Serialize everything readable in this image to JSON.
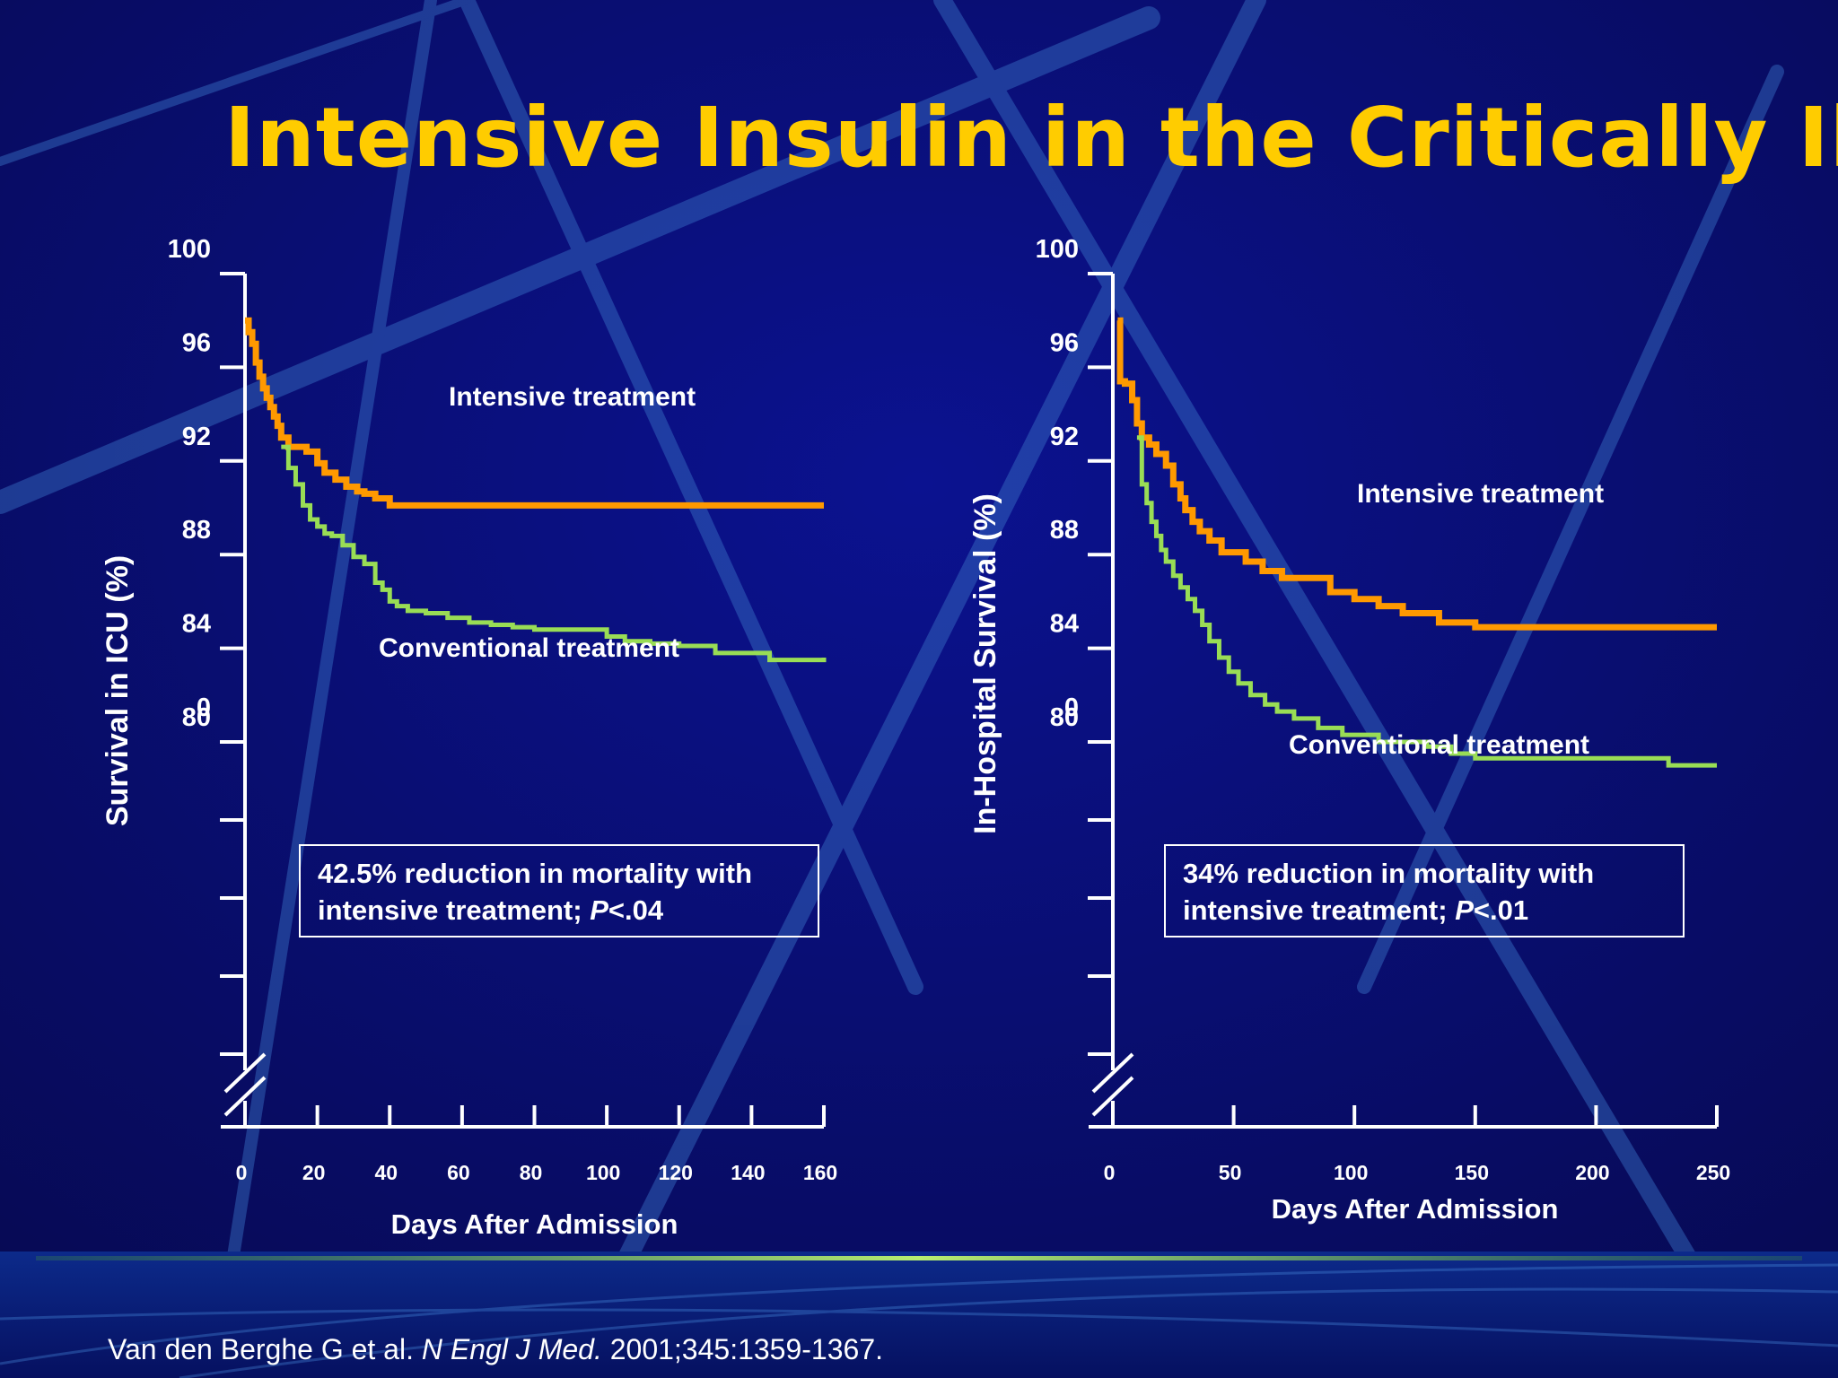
{
  "slide": {
    "title": "Intensive Insulin in the Critically Ill",
    "citation": {
      "authors": "Van den Berghe G et al.",
      "journal": "N Engl J Med.",
      "details": "2001;345:1359-1367."
    }
  },
  "colors": {
    "background": "#0a0f6e",
    "title": "#ffcc00",
    "intensive": "#ff9900",
    "conventional": "#99dd55",
    "axis": "#ffffff"
  },
  "chart_data": [
    {
      "type": "line",
      "ylabel": "Survival in ICU (%)",
      "xlabel": "Days After Admission",
      "xlim": [
        0,
        160
      ],
      "ylim": [
        80,
        100
      ],
      "x_ticks": [
        0,
        20,
        40,
        60,
        80,
        100,
        120,
        140,
        160
      ],
      "y_ticks": [
        100,
        96,
        92,
        88,
        84,
        80
      ],
      "y_axis_break": true,
      "y_zero_label": "0",
      "annotation": {
        "line1": "42.5% reduction in mortality with",
        "line2_prefix": "intensive treatment; ",
        "line2_p": "P",
        "line2_suffix": "<.04"
      },
      "series": [
        {
          "name": "Intensive treatment",
          "color": "#ff9900",
          "x": [
            0,
            1,
            2,
            3,
            4,
            5,
            6,
            7,
            8,
            9,
            10,
            12,
            14,
            17,
            20,
            22,
            25,
            28,
            31,
            33,
            36,
            40,
            45,
            60,
            80,
            100,
            120,
            140,
            160
          ],
          "y": [
            98,
            97.5,
            97,
            96.2,
            95.6,
            95.1,
            94.7,
            94.3,
            93.9,
            93.5,
            93,
            92.6,
            92.6,
            92.4,
            91.9,
            91.5,
            91.2,
            90.9,
            90.7,
            90.6,
            90.4,
            90.1,
            90.1,
            90.1,
            90.1,
            90.1,
            90.1,
            90.1,
            90.1
          ]
        },
        {
          "name": "Conventional treatment",
          "color": "#99dd55",
          "x": [
            10,
            12,
            14,
            16,
            18,
            20,
            22,
            24,
            27,
            30,
            33,
            36,
            38,
            40,
            42,
            45,
            50,
            56,
            62,
            68,
            74,
            80,
            90,
            100,
            105,
            112,
            120,
            130,
            145,
            160
          ],
          "y": [
            92.6,
            91.7,
            91,
            90.1,
            89.5,
            89.2,
            88.9,
            88.8,
            88.4,
            87.9,
            87.6,
            86.8,
            86.5,
            86,
            85.8,
            85.6,
            85.5,
            85.3,
            85.1,
            85,
            84.9,
            84.8,
            84.8,
            84.5,
            84.3,
            84.2,
            84.1,
            83.8,
            83.5,
            83.6
          ]
        }
      ]
    },
    {
      "type": "line",
      "ylabel": "In-Hospital Survival (%)",
      "xlabel": "Days After Admission",
      "xlim": [
        0,
        250
      ],
      "ylim": [
        80,
        100
      ],
      "x_ticks": [
        0,
        50,
        100,
        150,
        200,
        250
      ],
      "y_ticks": [
        100,
        96,
        92,
        88,
        84,
        80
      ],
      "y_axis_break": true,
      "y_zero_label": "0",
      "annotation": {
        "line1": "34% reduction in mortality with",
        "line2_prefix": "intensive treatment; ",
        "line2_p": "P",
        "line2_suffix": "<.01"
      },
      "series": [
        {
          "name": "Intensive treatment",
          "color": "#ff9900",
          "x": [
            2,
            3,
            5,
            8,
            10,
            12,
            15,
            18,
            22,
            25,
            28,
            30,
            33,
            36,
            40,
            45,
            55,
            62,
            70,
            90,
            100,
            110,
            120,
            135,
            150,
            200,
            250
          ],
          "y": [
            98,
            95.4,
            95.3,
            94.6,
            93.6,
            93,
            92.7,
            92.3,
            91.8,
            91,
            90.4,
            89.9,
            89.4,
            89,
            88.6,
            88.1,
            87.7,
            87.3,
            87,
            86.4,
            86.1,
            85.8,
            85.5,
            85.1,
            84.9,
            84.9,
            84.9
          ]
        },
        {
          "name": "Conventional treatment",
          "color": "#99dd55",
          "x": [
            10,
            12,
            14,
            16,
            18,
            20,
            22,
            25,
            28,
            31,
            34,
            37,
            40,
            44,
            48,
            52,
            57,
            63,
            68,
            75,
            85,
            95,
            110,
            130,
            140,
            150,
            175,
            200,
            225,
            230,
            250
          ],
          "y": [
            93,
            91,
            90.2,
            89.4,
            88.8,
            88.2,
            87.7,
            87.1,
            86.6,
            86.1,
            85.6,
            85,
            84.3,
            83.6,
            83,
            82.5,
            82,
            81.6,
            81.3,
            81,
            80.6,
            80.3,
            80,
            79.8,
            79.5,
            79.3,
            79.3,
            79.3,
            79.3,
            79,
            79
          ]
        }
      ]
    }
  ]
}
